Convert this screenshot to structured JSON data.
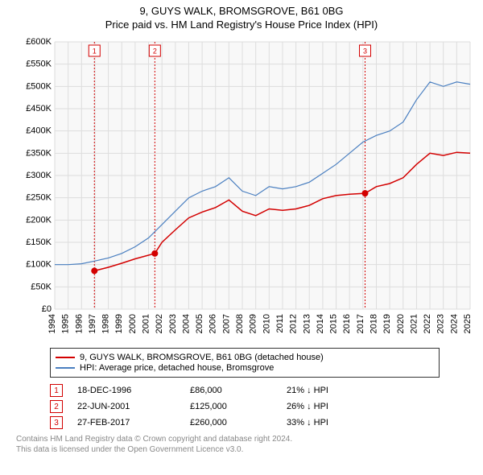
{
  "title_line1": "9, GUYS WALK, BROMSGROVE, B61 0BG",
  "title_line2": "Price paid vs. HM Land Registry's House Price Index (HPI)",
  "chart": {
    "type": "line",
    "background_color": "#f8f8f8",
    "grid_color": "#dddddd",
    "ylim": [
      0,
      600000
    ],
    "ytick_step": 50000,
    "ytick_labels": [
      "£0",
      "£50K",
      "£100K",
      "£150K",
      "£200K",
      "£250K",
      "£300K",
      "£350K",
      "£400K",
      "£450K",
      "£500K",
      "£550K",
      "£600K"
    ],
    "xlim": [
      1994,
      2025
    ],
    "xtick_step": 1,
    "xtick_labels": [
      "1994",
      "1995",
      "1996",
      "1997",
      "1998",
      "1999",
      "2000",
      "2001",
      "2002",
      "2003",
      "2004",
      "2005",
      "2006",
      "2007",
      "2008",
      "2009",
      "2010",
      "2011",
      "2012",
      "2013",
      "2014",
      "2015",
      "2016",
      "2017",
      "2018",
      "2019",
      "2020",
      "2021",
      "2022",
      "2023",
      "2024",
      "2025"
    ],
    "series": [
      {
        "name": "HPI: Average price, detached house, Bromsgrove",
        "color": "#4a7fc0",
        "line_width": 1.2,
        "points": [
          [
            1994,
            100000
          ],
          [
            1995,
            100000
          ],
          [
            1996,
            102000
          ],
          [
            1997,
            108000
          ],
          [
            1998,
            115000
          ],
          [
            1999,
            125000
          ],
          [
            2000,
            140000
          ],
          [
            2001,
            160000
          ],
          [
            2002,
            190000
          ],
          [
            2003,
            220000
          ],
          [
            2004,
            250000
          ],
          [
            2005,
            265000
          ],
          [
            2006,
            275000
          ],
          [
            2007,
            295000
          ],
          [
            2008,
            265000
          ],
          [
            2009,
            255000
          ],
          [
            2010,
            275000
          ],
          [
            2011,
            270000
          ],
          [
            2012,
            275000
          ],
          [
            2013,
            285000
          ],
          [
            2014,
            305000
          ],
          [
            2015,
            325000
          ],
          [
            2016,
            350000
          ],
          [
            2017,
            375000
          ],
          [
            2018,
            390000
          ],
          [
            2019,
            400000
          ],
          [
            2020,
            420000
          ],
          [
            2021,
            470000
          ],
          [
            2022,
            510000
          ],
          [
            2023,
            500000
          ],
          [
            2024,
            510000
          ],
          [
            2025,
            505000
          ]
        ]
      },
      {
        "name": "9, GUYS WALK, BROMSGROVE, B61 0BG (detached house)",
        "color": "#d30000",
        "line_width": 1.5,
        "points": [
          [
            1996.96,
            86000
          ],
          [
            1998,
            94000
          ],
          [
            1999,
            103000
          ],
          [
            2000,
            113000
          ],
          [
            2001.47,
            125000
          ],
          [
            2002,
            150000
          ],
          [
            2003,
            178000
          ],
          [
            2004,
            205000
          ],
          [
            2005,
            218000
          ],
          [
            2006,
            228000
          ],
          [
            2007,
            245000
          ],
          [
            2008,
            220000
          ],
          [
            2009,
            210000
          ],
          [
            2010,
            225000
          ],
          [
            2011,
            222000
          ],
          [
            2012,
            225000
          ],
          [
            2013,
            233000
          ],
          [
            2014,
            248000
          ],
          [
            2015,
            255000
          ],
          [
            2016,
            258000
          ],
          [
            2017.16,
            260000
          ],
          [
            2018,
            275000
          ],
          [
            2019,
            282000
          ],
          [
            2020,
            295000
          ],
          [
            2021,
            325000
          ],
          [
            2022,
            350000
          ],
          [
            2023,
            345000
          ],
          [
            2024,
            352000
          ],
          [
            2025,
            350000
          ]
        ]
      }
    ],
    "sale_events": [
      {
        "n": "1",
        "year": 1996.96,
        "price": 86000,
        "color": "#d30000"
      },
      {
        "n": "2",
        "year": 2001.47,
        "price": 125000,
        "color": "#d30000"
      },
      {
        "n": "3",
        "year": 2017.16,
        "price": 260000,
        "color": "#d30000"
      }
    ]
  },
  "legend": {
    "items": [
      {
        "color": "#d30000",
        "label": "9, GUYS WALK, BROMSGROVE, B61 0BG (detached house)"
      },
      {
        "color": "#4a7fc0",
        "label": "HPI: Average price, detached house, Bromsgrove"
      }
    ]
  },
  "sales": [
    {
      "n": "1",
      "color": "#d30000",
      "date": "18-DEC-1996",
      "price": "£86,000",
      "diff": "21% ↓ HPI"
    },
    {
      "n": "2",
      "color": "#d30000",
      "date": "22-JUN-2001",
      "price": "£125,000",
      "diff": "26% ↓ HPI"
    },
    {
      "n": "3",
      "color": "#d30000",
      "date": "27-FEB-2017",
      "price": "£260,000",
      "diff": "33% ↓ HPI"
    }
  ],
  "footer_line1": "Contains HM Land Registry data © Crown copyright and database right 2024.",
  "footer_line2": "This data is licensed under the Open Government Licence v3.0."
}
